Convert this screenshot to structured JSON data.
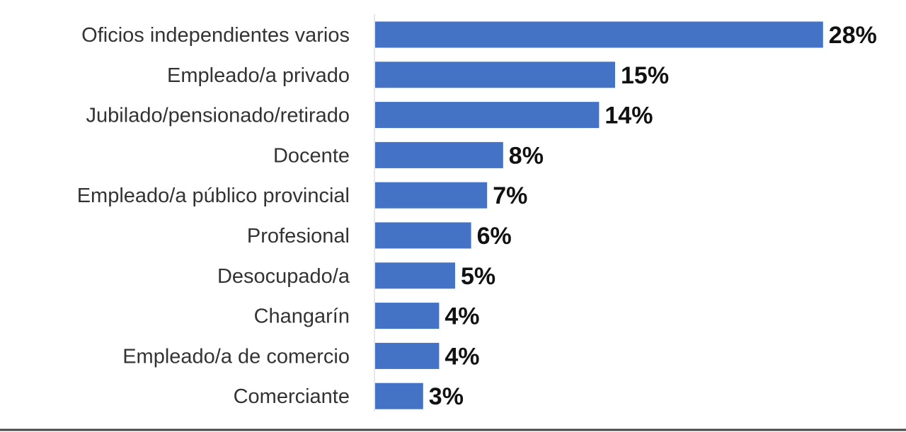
{
  "chart_data": {
    "type": "bar",
    "orientation": "horizontal",
    "categories": [
      "Oficios independientes varios",
      "Empleado/a privado",
      "Jubilado/pensionado/retirado",
      "Docente",
      "Empleado/a público provincial",
      "Profesional",
      "Desocupado/a",
      "Changarín",
      "Empleado/a de comercio",
      "Comerciante"
    ],
    "values": [
      28,
      15,
      14,
      8,
      7,
      6,
      5,
      4,
      4,
      3
    ],
    "data_labels": [
      "28%",
      "15%",
      "14%",
      "8%",
      "7%",
      "6%",
      "5%",
      "4%",
      "4%",
      "3%"
    ],
    "unit": "%",
    "bar_color": "#4472C4",
    "grid": false,
    "legend": "none"
  }
}
